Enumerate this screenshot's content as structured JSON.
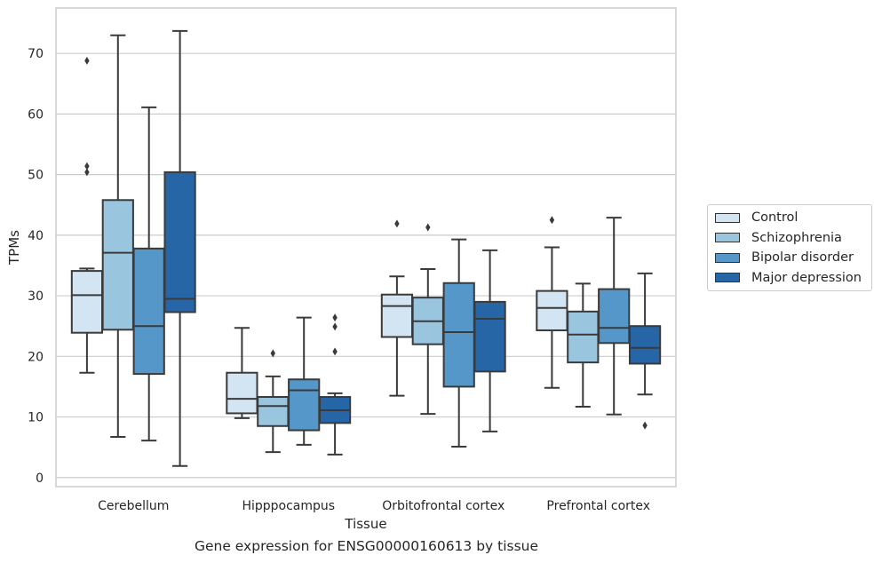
{
  "caption": "Gene expression for ENSG00000160613 by tissue",
  "chart_data": {
    "type": "box",
    "xlabel": "Tissue",
    "ylabel": "TPMs",
    "ylim": [
      -1.5,
      77.5
    ],
    "yticks": [
      0,
      10,
      20,
      30,
      40,
      50,
      60,
      70
    ],
    "grid": "horizontal",
    "legend_position": "right",
    "categories": [
      "Cerebellum",
      "Hipppocampus",
      "Orbitofrontal cortex",
      "Prefrontal cortex"
    ],
    "series": [
      {
        "name": "Control",
        "color": "#d3e4f3",
        "boxes": [
          {
            "low": 17.3,
            "q1": 23.9,
            "median": 30.1,
            "q3": 34.1,
            "high": 34.5,
            "outliers": [
              68.8,
              51.4,
              50.4
            ]
          },
          {
            "low": 9.8,
            "q1": 10.6,
            "median": 13.0,
            "q3": 17.3,
            "high": 24.7,
            "outliers": []
          },
          {
            "low": 13.5,
            "q1": 23.2,
            "median": 28.3,
            "q3": 30.2,
            "high": 33.2,
            "outliers": [
              41.9
            ]
          },
          {
            "low": 14.8,
            "q1": 24.3,
            "median": 28.0,
            "q3": 30.8,
            "high": 38.0,
            "outliers": [
              42.5
            ]
          }
        ]
      },
      {
        "name": "Schizophrenia",
        "color": "#9ac5df",
        "boxes": [
          {
            "low": 6.7,
            "q1": 24.4,
            "median": 37.1,
            "q3": 45.8,
            "high": 73.0,
            "outliers": []
          },
          {
            "low": 4.2,
            "q1": 8.5,
            "median": 11.8,
            "q3": 13.3,
            "high": 16.7,
            "outliers": [
              20.5
            ]
          },
          {
            "low": 10.5,
            "q1": 22.0,
            "median": 25.8,
            "q3": 29.7,
            "high": 34.4,
            "outliers": [
              41.3
            ]
          },
          {
            "low": 11.7,
            "q1": 19.0,
            "median": 23.6,
            "q3": 27.4,
            "high": 32.0,
            "outliers": []
          }
        ]
      },
      {
        "name": "Bipolar disorder",
        "color": "#5597c9",
        "boxes": [
          {
            "low": 6.1,
            "q1": 17.1,
            "median": 25.0,
            "q3": 37.8,
            "high": 61.1,
            "outliers": []
          },
          {
            "low": 5.4,
            "q1": 7.8,
            "median": 14.4,
            "q3": 16.2,
            "high": 26.4,
            "outliers": []
          },
          {
            "low": 5.1,
            "q1": 15.0,
            "median": 24.0,
            "q3": 32.1,
            "high": 39.3,
            "outliers": []
          },
          {
            "low": 10.4,
            "q1": 22.2,
            "median": 24.7,
            "q3": 31.1,
            "high": 42.9,
            "outliers": []
          }
        ]
      },
      {
        "name": "Major depression",
        "color": "#2665a6",
        "boxes": [
          {
            "low": 1.9,
            "q1": 27.3,
            "median": 29.5,
            "q3": 50.4,
            "high": 73.7,
            "outliers": []
          },
          {
            "low": 3.8,
            "q1": 9.0,
            "median": 11.1,
            "q3": 13.3,
            "high": 13.9,
            "outliers": [
              26.4,
              24.9,
              20.8
            ]
          },
          {
            "low": 7.6,
            "q1": 17.5,
            "median": 26.2,
            "q3": 29.0,
            "high": 37.5,
            "outliers": []
          },
          {
            "low": 13.7,
            "q1": 18.8,
            "median": 21.4,
            "q3": 25.0,
            "high": 33.7,
            "outliers": [
              8.6
            ]
          }
        ]
      }
    ]
  }
}
